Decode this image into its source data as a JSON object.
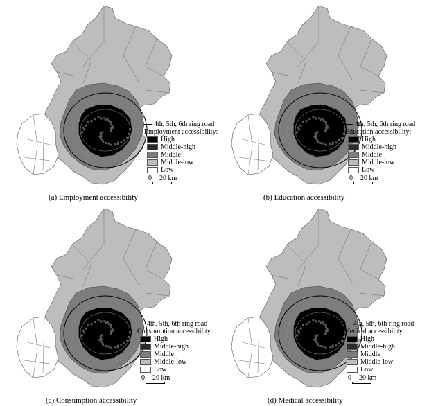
{
  "legend": {
    "road_label": "4th, 5th, 6th ring road",
    "classes": [
      "High",
      "Middle-high",
      "Middle",
      "Middle-low",
      "Low"
    ],
    "class_colors": [
      "#000000",
      "#2a2a2a",
      "#7d7d7d",
      "#bdbdbd",
      "#ffffff"
    ],
    "scale_zero": "0",
    "scale_label": "20 km"
  },
  "panels": [
    {
      "legend_title": "Employment accessibility:",
      "caption": "(a) Employment accessibility"
    },
    {
      "legend_title": "Education accessibility:",
      "caption": "(b) Education accessibility"
    },
    {
      "legend_title": "Consumption accessibility:",
      "caption": "(c) Consumption accessibility"
    },
    {
      "legend_title": "Medical accessibility:",
      "caption": "(d) Medical accessibility"
    }
  ]
}
